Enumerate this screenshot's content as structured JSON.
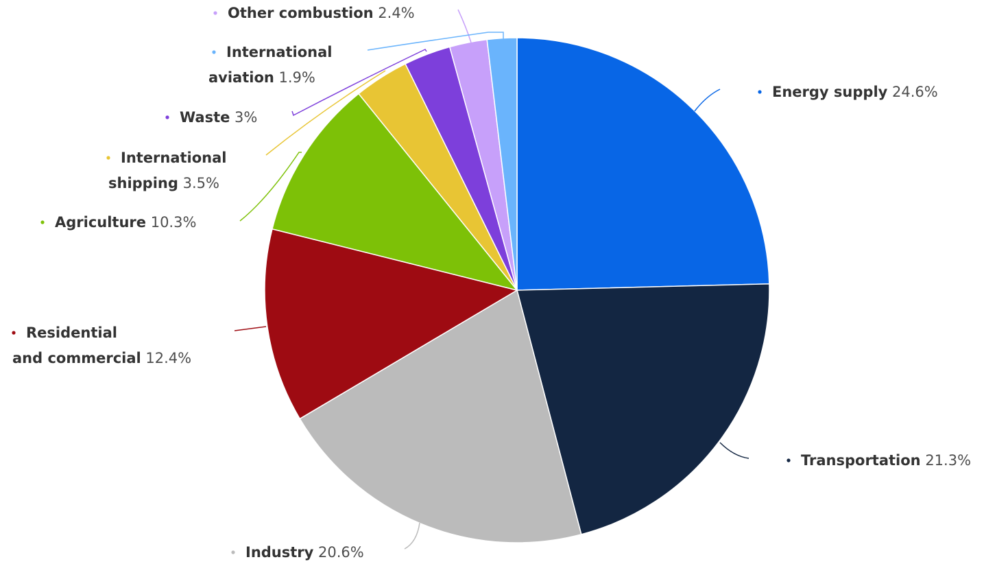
{
  "chart_data": {
    "type": "pie",
    "title": "",
    "value_unit": "%",
    "slices": [
      {
        "label": "Energy supply",
        "label_lines": [
          "Energy supply"
        ],
        "value": 24.6,
        "value_text": "24.6%",
        "color": "#0866e6"
      },
      {
        "label": "Transportation",
        "label_lines": [
          "Transportation"
        ],
        "value": 21.3,
        "value_text": "21.3%",
        "color": "#132642"
      },
      {
        "label": "Industry",
        "label_lines": [
          "Industry"
        ],
        "value": 20.6,
        "value_text": "20.6%",
        "color": "#bbbbbb"
      },
      {
        "label": "Residential and commercial",
        "label_lines": [
          "Residential",
          "and commercial"
        ],
        "value": 12.4,
        "value_text": "12.4%",
        "color": "#9e0b12"
      },
      {
        "label": "Agriculture",
        "label_lines": [
          "Agriculture"
        ],
        "value": 10.3,
        "value_text": "10.3%",
        "color": "#7dc107"
      },
      {
        "label": "International shipping",
        "label_lines": [
          "International",
          "shipping"
        ],
        "value": 3.5,
        "value_text": "3.5%",
        "color": "#e8c534"
      },
      {
        "label": "Waste",
        "label_lines": [
          "Waste"
        ],
        "value": 3,
        "value_text": "3%",
        "color": "#7d3fdb"
      },
      {
        "label": "Other combustion",
        "label_lines": [
          "Other combustion"
        ],
        "value": 2.4,
        "value_text": "2.4%",
        "color": "#c7a0fa"
      },
      {
        "label": "International aviation",
        "label_lines": [
          "International",
          "aviation"
        ],
        "value": 1.9,
        "value_text": "1.9%",
        "color": "#6ab4fc"
      }
    ]
  }
}
